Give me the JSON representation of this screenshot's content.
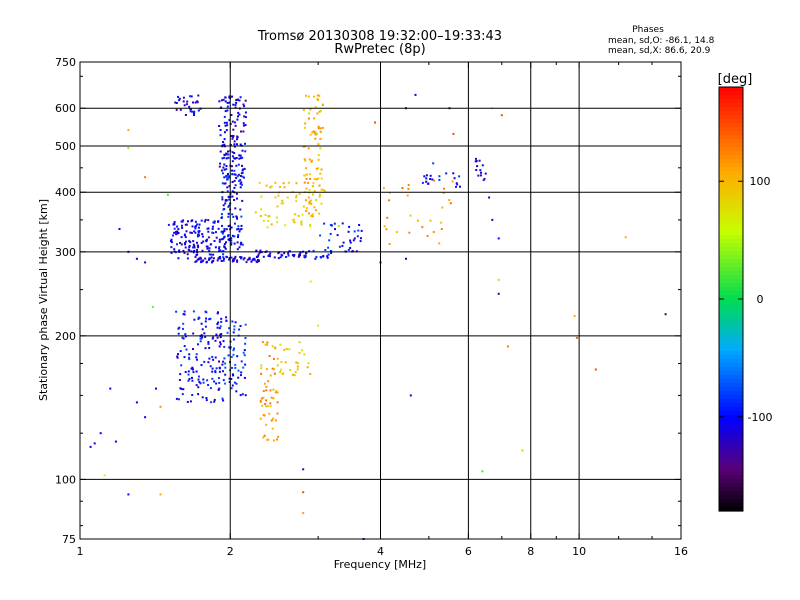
{
  "chart_data": {
    "type": "scatter",
    "title": "Tromsø 20130308 19:32:00–19:33:43",
    "subtitle": "RwPretec (8p)",
    "xlabel": "Frequency [MHz]",
    "ylabel": "Stationary phase Virtual Height [km]",
    "x_scale": "log",
    "y_scale": "log",
    "xlim": [
      1,
      16
    ],
    "ylim": [
      75,
      750
    ],
    "x_ticks": [
      1,
      2,
      4,
      6,
      8,
      10,
      16
    ],
    "x_tick_labels": [
      "1",
      "2",
      "4",
      "6",
      "8",
      "10",
      "16"
    ],
    "x_grid": [
      2,
      4,
      6,
      8,
      10
    ],
    "y_ticks": [
      75,
      100,
      200,
      300,
      400,
      500,
      600,
      750
    ],
    "y_tick_labels": [
      "75",
      "100",
      "200",
      "300",
      "400",
      "500",
      "600",
      "750"
    ],
    "y_grid": [
      100,
      200,
      300,
      400,
      500,
      600
    ],
    "grid": true,
    "legend": {
      "title": "Phases",
      "lines": [
        "mean, sd,O:  -86.1, 14.8",
        "mean, sd,X:  86.6, 20.9"
      ],
      "position": "top-right"
    },
    "colorbar": {
      "label": "[deg]",
      "ticks": [
        100,
        0,
        -100
      ],
      "tick_labels": [
        "100",
        "0",
        "-100"
      ],
      "range": [
        -180,
        180
      ],
      "position": "right"
    },
    "clusters": [
      {
        "name": "",
        "x": [
          1.55,
          1.75
        ],
        "y": [
          580,
          640
        ],
        "phase": -110,
        "n": 30
      },
      {
        "name": "",
        "x": [
          1.9,
          2.15
        ],
        "y": [
          420,
          640
        ],
        "phase": -110,
        "n": 140
      },
      {
        "name": "",
        "x": [
          1.92,
          2.12
        ],
        "y": [
          300,
          440
        ],
        "phase": -100,
        "n": 110
      },
      {
        "name": "",
        "x": [
          1.5,
          1.95
        ],
        "y": [
          290,
          350
        ],
        "phase": -105,
        "n": 150
      },
      {
        "name": "",
        "x": [
          1.7,
          2.3
        ],
        "y": [
          285,
          293
        ],
        "phase": -110,
        "n": 70
      },
      {
        "name": "",
        "x": [
          2.25,
          3.2
        ],
        "y": [
          290,
          302
        ],
        "phase": -105,
        "n": 60
      },
      {
        "name": "",
        "x": [
          3.0,
          3.7
        ],
        "y": [
          300,
          345
        ],
        "phase": -100,
        "n": 35
      },
      {
        "name": "",
        "x": [
          2.25,
          2.9
        ],
        "y": [
          330,
          420
        ],
        "phase": 90,
        "n": 55
      },
      {
        "name": "",
        "x": [
          2.8,
          3.1
        ],
        "y": [
          350,
          640
        ],
        "phase": 100,
        "n": 90
      },
      {
        "name": "",
        "x": [
          1.55,
          1.95
        ],
        "y": [
          145,
          225
        ],
        "phase": -100,
        "n": 150
      },
      {
        "name": "",
        "x": [
          1.95,
          2.15
        ],
        "y": [
          150,
          220
        ],
        "phase": -90,
        "n": 60
      },
      {
        "name": "",
        "x": [
          2.3,
          2.5
        ],
        "y": [
          120,
          195
        ],
        "phase": 110,
        "n": 60
      },
      {
        "name": "",
        "x": [
          2.5,
          2.9
        ],
        "y": [
          165,
          195
        ],
        "phase": 90,
        "n": 25
      },
      {
        "name": "",
        "x": [
          4.0,
          5.8
        ],
        "y": [
          310,
          430
        ],
        "phase": 110,
        "n": 30
      },
      {
        "name": "",
        "x": [
          4.8,
          5.8
        ],
        "y": [
          410,
          440
        ],
        "phase": -100,
        "n": 20
      },
      {
        "name": "",
        "x": [
          6.2,
          6.5
        ],
        "y": [
          420,
          470
        ],
        "phase": -110,
        "n": 14
      }
    ],
    "scattered_points": [
      {
        "x": 1.05,
        "y": 117,
        "phase": -110
      },
      {
        "x": 1.07,
        "y": 119,
        "phase": -110
      },
      {
        "x": 1.1,
        "y": 125,
        "phase": -100
      },
      {
        "x": 1.15,
        "y": 155,
        "phase": -100
      },
      {
        "x": 1.18,
        "y": 120,
        "phase": -110
      },
      {
        "x": 1.25,
        "y": 93,
        "phase": -110
      },
      {
        "x": 1.3,
        "y": 145,
        "phase": -100
      },
      {
        "x": 1.35,
        "y": 135,
        "phase": -100
      },
      {
        "x": 1.42,
        "y": 155,
        "phase": -110
      },
      {
        "x": 1.45,
        "y": 142,
        "phase": 120
      },
      {
        "x": 1.25,
        "y": 300,
        "phase": -110
      },
      {
        "x": 1.3,
        "y": 290,
        "phase": -100
      },
      {
        "x": 1.35,
        "y": 285,
        "phase": -110
      },
      {
        "x": 1.2,
        "y": 335,
        "phase": -100
      },
      {
        "x": 1.25,
        "y": 540,
        "phase": 110
      },
      {
        "x": 1.25,
        "y": 495,
        "phase": 40
      },
      {
        "x": 1.35,
        "y": 430,
        "phase": 130
      },
      {
        "x": 1.5,
        "y": 395,
        "phase": 20
      },
      {
        "x": 1.4,
        "y": 230,
        "phase": 30
      },
      {
        "x": 1.12,
        "y": 102,
        "phase": 60
      },
      {
        "x": 1.45,
        "y": 93,
        "phase": 110
      },
      {
        "x": 2.8,
        "y": 105,
        "phase": -110
      },
      {
        "x": 2.8,
        "y": 94,
        "phase": 150
      },
      {
        "x": 2.8,
        "y": 85,
        "phase": 110
      },
      {
        "x": 2.9,
        "y": 260,
        "phase": 60
      },
      {
        "x": 3.0,
        "y": 210,
        "phase": 70
      },
      {
        "x": 4.0,
        "y": 285,
        "phase": -110
      },
      {
        "x": 4.5,
        "y": 290,
        "phase": -110
      },
      {
        "x": 4.5,
        "y": 600,
        "phase": -110
      },
      {
        "x": 4.7,
        "y": 640,
        "phase": -110
      },
      {
        "x": 4.6,
        "y": 150,
        "phase": -110
      },
      {
        "x": 5.5,
        "y": 600,
        "phase": -120
      },
      {
        "x": 5.6,
        "y": 530,
        "phase": 150
      },
      {
        "x": 5.1,
        "y": 460,
        "phase": -80
      },
      {
        "x": 6.6,
        "y": 390,
        "phase": -110
      },
      {
        "x": 6.7,
        "y": 350,
        "phase": -110
      },
      {
        "x": 6.9,
        "y": 320,
        "phase": -100
      },
      {
        "x": 6.9,
        "y": 262,
        "phase": 90
      },
      {
        "x": 6.9,
        "y": 245,
        "phase": -110
      },
      {
        "x": 6.7,
        "y": 600,
        "phase": 60
      },
      {
        "x": 7.0,
        "y": 580,
        "phase": 150
      },
      {
        "x": 7.2,
        "y": 190,
        "phase": 130
      },
      {
        "x": 7.7,
        "y": 115,
        "phase": 90
      },
      {
        "x": 9.8,
        "y": 220,
        "phase": 100
      },
      {
        "x": 9.9,
        "y": 198,
        "phase": 140
      },
      {
        "x": 10.8,
        "y": 170,
        "phase": 150
      },
      {
        "x": 12.4,
        "y": 322,
        "phase": 100
      },
      {
        "x": 14.9,
        "y": 222,
        "phase": -150
      },
      {
        "x": 3.7,
        "y": 75,
        "phase": -110
      },
      {
        "x": 6.4,
        "y": 104,
        "phase": 20
      },
      {
        "x": 3.9,
        "y": 560,
        "phase": 150
      },
      {
        "x": 3.3,
        "y": 340,
        "phase": 40
      }
    ]
  }
}
